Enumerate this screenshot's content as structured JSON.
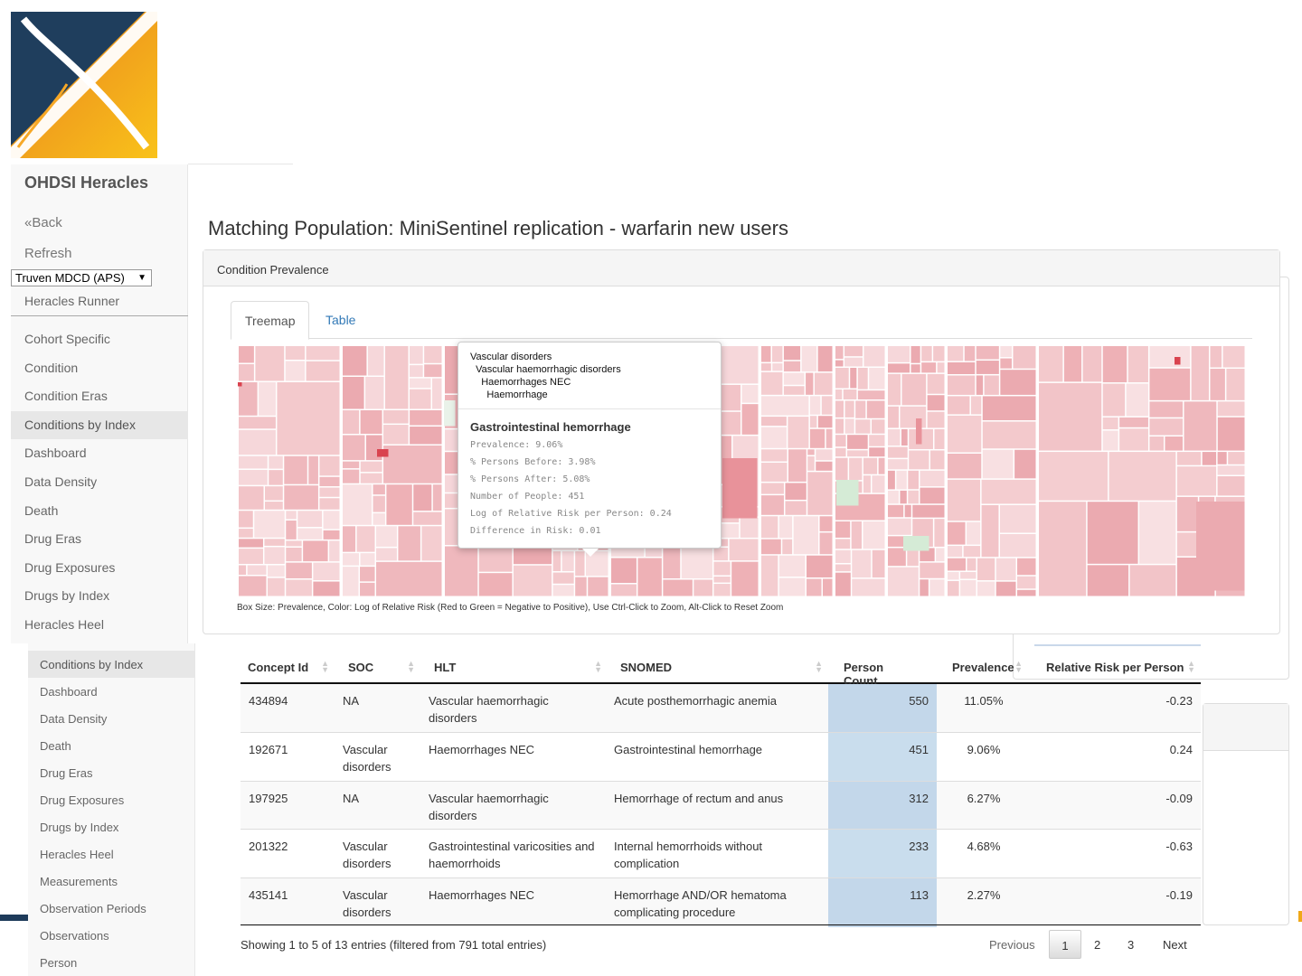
{
  "app": {
    "brand": "OHDSI Heracles"
  },
  "nav": {
    "back": "«Back",
    "refresh": "Refresh",
    "source": "Truven MDCD (APS)",
    "runner": "Heracles Runner",
    "reports": [
      "Cohort Specific",
      "Condition",
      "Condition Eras",
      "Conditions by Index",
      "Dashboard",
      "Data Density",
      "Death",
      "Drug Eras",
      "Drug Exposures",
      "Drugs by Index",
      "Heracles Heel"
    ],
    "active": "Conditions by Index"
  },
  "nav2": {
    "reports": [
      "Conditions by Index",
      "Dashboard",
      "Data Density",
      "Death",
      "Drug Eras",
      "Drug Exposures",
      "Drugs by Index",
      "Heracles Heel",
      "Measurements",
      "Observation Periods",
      "Observations",
      "Person"
    ]
  },
  "page": {
    "title": "Matching Population: MiniSentinel replication - warfarin new users"
  },
  "panel": {
    "header": "Condition Prevalence",
    "tabs": [
      "Treemap",
      "Table"
    ],
    "caption": "Box Size: Prevalence, Color: Log of Relative Risk (Red to Green = Negative to Positive), Use Ctrl-Click to Zoom, Alt-Click to Reset Zoom"
  },
  "tooltip": {
    "path": [
      "Vascular disorders",
      "  Vascular haemorrhagic disorders",
      "    Haemorrhages NEC",
      "      Haemorrhage"
    ],
    "title": "Gastrointestinal hemorrhage",
    "lines": [
      "Prevalence: 9.06%",
      "% Persons Before: 3.98%",
      "% Persons After: 5.08%",
      "Number of People: 451",
      "Log of Relative Risk per Person: 0.24",
      "Difference in Risk: 0.01"
    ]
  },
  "table": {
    "columns": [
      "Concept Id",
      "SOC",
      "HLT",
      "SNOMED",
      "Person Count",
      "Prevalence",
      "Relative Risk per Person"
    ],
    "rows": [
      {
        "concept_id": "434894",
        "soc": "NA",
        "hlt": "Vascular haemorrhagic disorders",
        "snomed": "Acute posthemorrhagic anemia",
        "person_count": "550",
        "prevalence": "11.05%",
        "rr": "-0.23"
      },
      {
        "concept_id": "192671",
        "soc": "Vascular disorders",
        "hlt": "Haemorrhages NEC",
        "snomed": "Gastrointestinal hemorrhage",
        "person_count": "451",
        "prevalence": "9.06%",
        "rr": "0.24"
      },
      {
        "concept_id": "197925",
        "soc": "NA",
        "hlt": "Vascular haemorrhagic disorders",
        "snomed": "Hemorrhage of rectum and anus",
        "person_count": "312",
        "prevalence": "6.27%",
        "rr": "-0.09"
      },
      {
        "concept_id": "201322",
        "soc": "Vascular disorders",
        "hlt": "Gastrointestinal varicosities and haemorrhoids",
        "snomed": "Internal hemorrhoids without complication",
        "person_count": "233",
        "prevalence": "4.68%",
        "rr": "-0.63"
      },
      {
        "concept_id": "435141",
        "soc": "Vascular disorders",
        "hlt": "Haemorrhages NEC",
        "snomed": "Hemorrhage AND/OR hematoma complicating procedure",
        "person_count": "113",
        "prevalence": "2.27%",
        "rr": "-0.19"
      }
    ],
    "info": "Showing 1 to 5 of 13 entries (filtered from 791 total entries)",
    "pager": {
      "previous": "Previous",
      "pages": [
        "1",
        "2",
        "3"
      ],
      "next": "Next"
    }
  },
  "colors": {
    "treemap_red": "#e8929a",
    "treemap_pink": "#f2c6ca",
    "treemap_green": "#d5ebd6",
    "brand_orange": "#f0a818",
    "brand_navy": "#1e3b5a",
    "link": "#337ab7"
  }
}
